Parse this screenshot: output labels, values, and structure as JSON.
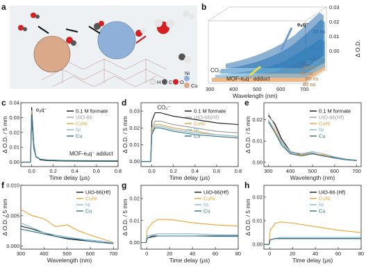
{
  "figure": {
    "panel_labels": [
      "a",
      "b",
      "c",
      "d",
      "e",
      "f",
      "g",
      "h"
    ],
    "panel_a": {
      "legend_atoms": [
        "H",
        "C",
        "O",
        "Ni",
        "Cu"
      ],
      "atom_colors": {
        "H": "#e6e6e6",
        "C": "#555555",
        "O": "#d42020",
        "Ni": "#8fb0d8",
        "Cu": "#d9a98a"
      }
    },
    "panel_b": {
      "eaq_label": "eₐq⁻",
      "co2_label": "CO₂⁻",
      "adduct_label": "MOF-eₐq⁻ adduct",
      "time_labels": [
        "10 ns",
        "20 ns",
        "30 ns",
        "35 ns",
        "40 ns",
        "50 ns",
        "60 ns",
        "80 ns"
      ],
      "x_ticks": [
        "300",
        "400",
        "500",
        "600",
        "700"
      ],
      "z_ticks": [
        "0.00",
        "0.01",
        "0.02",
        "0.03"
      ],
      "xlabel": "Wavelength (nm)",
      "zlabel": "Δ O.D."
    }
  },
  "chart_data": [
    {
      "panel": "c",
      "type": "line",
      "xlabel": "Time delay (μs)",
      "ylabel": "Δ O.D. / 5 mm",
      "xlim": [
        -0.1,
        0.8
      ],
      "ylim": [
        -0.003,
        0.04
      ],
      "xticks": [
        "0.0",
        "0.2",
        "0.4",
        "0.6",
        "0.8"
      ],
      "yticks": [
        "0.00",
        "0.01",
        "0.02",
        "0.03",
        "0.04"
      ],
      "annotations": [
        "eₐq⁻",
        "MOF-eₐq⁻ adduct"
      ],
      "legend": [
        "0.1 M formate",
        "UiO-66",
        "CuNi",
        "Ni",
        "Cu"
      ],
      "series": [
        {
          "name": "0.1 M formate",
          "color": "#111111",
          "x": [
            -0.1,
            -0.01,
            0.0,
            0.01,
            0.02,
            0.04,
            0.08,
            0.15,
            0.3,
            0.5,
            0.8
          ],
          "y": [
            0,
            0,
            0.037,
            0.025,
            0.012,
            0.004,
            0.0015,
            0.001,
            0.0008,
            0.0006,
            0.0005
          ]
        },
        {
          "name": "UiO-66",
          "color": "#999999",
          "x": [
            -0.1,
            -0.01,
            0.0,
            0.01,
            0.02,
            0.04,
            0.08,
            0.15,
            0.3,
            0.5,
            0.8
          ],
          "y": [
            0,
            0,
            0.035,
            0.022,
            0.011,
            0.004,
            0.002,
            0.0015,
            0.001,
            0.0009,
            0.0008
          ]
        },
        {
          "name": "CuNi",
          "color": "#f0a030",
          "x": [
            -0.1,
            -0.01,
            0.0,
            0.01,
            0.02,
            0.04,
            0.08,
            0.15,
            0.3,
            0.5,
            0.8
          ],
          "y": [
            0,
            0,
            0.034,
            0.021,
            0.01,
            0.004,
            0.002,
            0.0015,
            0.0012,
            0.001,
            0.001
          ]
        },
        {
          "name": "Ni",
          "color": "#7fb4cf",
          "x": [
            -0.1,
            -0.01,
            0.0,
            0.01,
            0.02,
            0.04,
            0.08,
            0.15,
            0.3,
            0.5,
            0.8
          ],
          "y": [
            0,
            0,
            0.033,
            0.02,
            0.01,
            0.004,
            0.002,
            0.0014,
            0.0011,
            0.001,
            0.0009
          ]
        },
        {
          "name": "Cu",
          "color": "#2a6f8f",
          "x": [
            -0.1,
            -0.01,
            0.0,
            0.01,
            0.02,
            0.04,
            0.08,
            0.15,
            0.3,
            0.5,
            0.8
          ],
          "y": [
            0,
            0,
            0.032,
            0.019,
            0.009,
            0.0035,
            0.0018,
            0.0013,
            0.001,
            0.0009,
            0.0008
          ]
        }
      ]
    },
    {
      "panel": "d",
      "type": "line",
      "xlabel": "Time delay (μs)",
      "ylabel": "Δ O.D. / 5 mm",
      "xlim": [
        -0.1,
        0.8
      ],
      "ylim": [
        -0.003,
        0.035
      ],
      "xticks": [
        "0.0",
        "0.2",
        "0.4",
        "0.6",
        "0.8"
      ],
      "yticks": [
        "0.00",
        "0.01",
        "0.02",
        "0.03"
      ],
      "annotations": [
        "CO₂⁻"
      ],
      "legend": [
        "0.1 M formate",
        "UiO-66(Hf)",
        "CuNi",
        "Ni",
        "Cu"
      ],
      "series": [
        {
          "name": "0.1 M formate",
          "color": "#111111",
          "x": [
            -0.1,
            -0.01,
            0.0,
            0.03,
            0.08,
            0.2,
            0.4,
            0.6,
            0.8
          ],
          "y": [
            0,
            0,
            0.024,
            0.029,
            0.029,
            0.027,
            0.025,
            0.023,
            0.022
          ]
        },
        {
          "name": "UiO-66(Hf)",
          "color": "#999999",
          "x": [
            -0.1,
            -0.01,
            0.0,
            0.03,
            0.08,
            0.2,
            0.4,
            0.6,
            0.8
          ],
          "y": [
            0,
            0,
            0.02,
            0.024,
            0.024,
            0.022,
            0.02,
            0.018,
            0.017
          ]
        },
        {
          "name": "CuNi",
          "color": "#f0a030",
          "x": [
            -0.1,
            -0.01,
            0.0,
            0.03,
            0.08,
            0.2,
            0.4,
            0.6,
            0.8
          ],
          "y": [
            0,
            0,
            0.018,
            0.022,
            0.022,
            0.02,
            0.018,
            0.016,
            0.015
          ]
        },
        {
          "name": "Ni",
          "color": "#7fb4cf",
          "x": [
            -0.1,
            -0.01,
            0.0,
            0.03,
            0.08,
            0.2,
            0.4,
            0.6,
            0.8
          ],
          "y": [
            0,
            0,
            0.017,
            0.021,
            0.021,
            0.019,
            0.017,
            0.016,
            0.015
          ]
        },
        {
          "name": "Cu",
          "color": "#2a6f8f",
          "x": [
            -0.1,
            -0.01,
            0.0,
            0.03,
            0.08,
            0.2,
            0.4,
            0.6,
            0.8
          ],
          "y": [
            0,
            0,
            0.016,
            0.02,
            0.02,
            0.018,
            0.016,
            0.015,
            0.014
          ]
        }
      ]
    },
    {
      "panel": "e",
      "type": "line",
      "xlabel": "Wavelength (nm)",
      "ylabel": "Δ O.D. / 5 mm",
      "xlim": [
        280,
        720
      ],
      "ylim": [
        -0.002,
        0.028
      ],
      "xticks": [
        "300",
        "400",
        "500",
        "600",
        "700"
      ],
      "yticks": [
        "0.00",
        "0.01",
        "0.02"
      ],
      "legend": [
        "0.1 M formate",
        "UiO-66(Hf)",
        "CuNi",
        "Ni",
        "Cu"
      ],
      "series": [
        {
          "name": "0.1 M formate",
          "color": "#111111",
          "x": [
            300,
            330,
            360,
            400,
            450,
            500,
            550,
            600,
            650,
            700
          ],
          "y": [
            0.022,
            0.018,
            0.011,
            0.005,
            0.0035,
            0.004,
            0.003,
            0.0025,
            0.0015,
            0.001
          ]
        },
        {
          "name": "UiO-66(Hf)",
          "color": "#999999",
          "x": [
            300,
            330,
            360,
            400,
            450,
            500,
            550,
            600,
            650,
            700
          ],
          "y": [
            0.023,
            0.017,
            0.01,
            0.005,
            0.004,
            0.0045,
            0.003,
            0.002,
            0.0015,
            0.001
          ]
        },
        {
          "name": "CuNi",
          "color": "#f0a030",
          "x": [
            300,
            330,
            360,
            400,
            450,
            500,
            550,
            600,
            650,
            700
          ],
          "y": [
            0.02,
            0.015,
            0.009,
            0.004,
            0.0035,
            0.004,
            0.0035,
            0.002,
            0.0012,
            0.0008
          ]
        },
        {
          "name": "Ni",
          "color": "#7fb4cf",
          "x": [
            300,
            330,
            360,
            400,
            450,
            500,
            550,
            600,
            650,
            700
          ],
          "y": [
            0.02,
            0.014,
            0.009,
            0.0045,
            0.004,
            0.005,
            0.004,
            0.0025,
            0.0015,
            0.001
          ]
        },
        {
          "name": "Cu",
          "color": "#2a6f8f",
          "x": [
            300,
            330,
            360,
            400,
            450,
            500,
            550,
            600,
            650,
            700
          ],
          "y": [
            0.019,
            0.014,
            0.008,
            0.004,
            0.003,
            0.004,
            0.003,
            0.002,
            0.0012,
            0.0008
          ]
        }
      ]
    },
    {
      "panel": "f",
      "type": "line",
      "xlabel": "Wavelength (nm)",
      "ylabel": "Δ O.D. / 5 mm",
      "xlim": [
        300,
        720
      ],
      "ylim": [
        -0.0005,
        0.01
      ],
      "xticks": [
        "300",
        "400",
        "500",
        "600",
        "700"
      ],
      "yticks": [
        "0.000",
        "0.005",
        "0.010"
      ],
      "legend": [
        "UiO-66(Hf)",
        "CuNi",
        "Ni",
        "Cu"
      ],
      "series": [
        {
          "name": "UiO-66(Hf)",
          "color": "#111111",
          "x": [
            300,
            350,
            400,
            450,
            500,
            550,
            600,
            650,
            700
          ],
          "y": [
            0.0033,
            0.0028,
            0.0022,
            0.0016,
            0.0012,
            0.001,
            0.0008,
            0.0006,
            0.0005
          ]
        },
        {
          "name": "CuNi",
          "color": "#f0a030",
          "x": [
            300,
            350,
            400,
            450,
            500,
            550,
            600,
            650,
            700
          ],
          "y": [
            0.006,
            0.005,
            0.0045,
            0.0032,
            0.0035,
            0.0025,
            0.0018,
            0.0012,
            0.0006
          ]
        },
        {
          "name": "Ni",
          "color": "#7fb4cf",
          "x": [
            300,
            350,
            400,
            450,
            500,
            550,
            600,
            650,
            700
          ],
          "y": [
            0.0038,
            0.003,
            0.0022,
            0.0018,
            0.0015,
            0.0012,
            0.001,
            0.0008,
            0.0005
          ]
        },
        {
          "name": "Cu",
          "color": "#2a6f8f",
          "x": [
            300,
            350,
            400,
            450,
            500,
            550,
            600,
            650,
            700
          ],
          "y": [
            0.0028,
            0.0024,
            0.002,
            0.0016,
            0.0013,
            0.0011,
            0.0008,
            0.0006,
            0.0004
          ]
        }
      ]
    },
    {
      "panel": "g",
      "type": "line",
      "xlabel": "Time delay (μs)",
      "ylabel": "Δ O.D. / 5 mm",
      "xlim": [
        -5,
        80
      ],
      "ylim": [
        -0.003,
        0.026
      ],
      "xticks": [
        "0",
        "20",
        "40",
        "60",
        "80"
      ],
      "yticks": [
        "0.00",
        "0.01",
        "0.02"
      ],
      "legend": [
        "UiO-66(Hf)",
        "CuNi",
        "Ni",
        "Cu"
      ],
      "series": [
        {
          "name": "UiO-66(Hf)",
          "color": "#111111",
          "x": [
            -5,
            -0.5,
            0.5,
            5,
            10,
            20,
            40,
            60,
            80
          ],
          "y": [
            0,
            0,
            0.002,
            0.003,
            0.003,
            0.003,
            0.003,
            0.003,
            0.003
          ]
        },
        {
          "name": "CuNi",
          "color": "#f0a030",
          "x": [
            -5,
            -0.5,
            0.5,
            5,
            10,
            20,
            40,
            60,
            80
          ],
          "y": [
            0,
            0,
            0.006,
            0.009,
            0.0105,
            0.0105,
            0.009,
            0.008,
            0.0075
          ]
        },
        {
          "name": "Ni",
          "color": "#7fb4cf",
          "x": [
            -5,
            -0.5,
            0.5,
            5,
            10,
            20,
            40,
            60,
            80
          ],
          "y": [
            0,
            0,
            0.003,
            0.0035,
            0.004,
            0.004,
            0.004,
            0.0035,
            0.0035
          ]
        },
        {
          "name": "Cu",
          "color": "#2a6f8f",
          "x": [
            -5,
            -0.5,
            0.5,
            5,
            10,
            20,
            40,
            60,
            80
          ],
          "y": [
            0,
            0,
            0.002,
            0.0025,
            0.003,
            0.003,
            0.003,
            0.0028,
            0.0028
          ]
        }
      ]
    },
    {
      "panel": "h",
      "type": "line",
      "xlabel": "Time delay (μs)",
      "ylabel": "Δ O.D. / 5 mm",
      "xlim": [
        -5,
        80
      ],
      "ylim": [
        -0.002,
        0.025
      ],
      "xticks": [
        "0",
        "20",
        "40",
        "60",
        "80"
      ],
      "yticks": [
        "0.00",
        "0.01",
        "0.02"
      ],
      "legend": [
        "UiO-66 (Hf)",
        "CuNi",
        "Ni",
        "Cu"
      ],
      "series": [
        {
          "name": "UiO-66 (Hf)",
          "color": "#111111",
          "x": [
            -5,
            -0.5,
            0.5,
            5,
            10,
            20,
            40,
            60,
            80
          ],
          "y": [
            0,
            0,
            0.002,
            0.0025,
            0.0025,
            0.0025,
            0.0025,
            0.0025,
            0.0025
          ]
        },
        {
          "name": "CuNi",
          "color": "#f0a030",
          "x": [
            -5,
            -0.5,
            0.5,
            5,
            10,
            20,
            40,
            60,
            80
          ],
          "y": [
            0,
            0,
            0.006,
            0.009,
            0.0095,
            0.009,
            0.0075,
            0.006,
            0.005
          ]
        },
        {
          "name": "Ni",
          "color": "#7fb4cf",
          "x": [
            -5,
            -0.5,
            0.5,
            5,
            10,
            20,
            40,
            60,
            80
          ],
          "y": [
            0,
            0,
            0.002,
            0.0025,
            0.003,
            0.003,
            0.003,
            0.003,
            0.003
          ]
        },
        {
          "name": "Cu",
          "color": "#2a6f8f",
          "x": [
            -5,
            -0.5,
            0.5,
            5,
            10,
            20,
            40,
            60,
            80
          ],
          "y": [
            0,
            0,
            0.002,
            0.0025,
            0.0025,
            0.0025,
            0.0025,
            0.0025,
            0.0025
          ]
        }
      ]
    }
  ]
}
